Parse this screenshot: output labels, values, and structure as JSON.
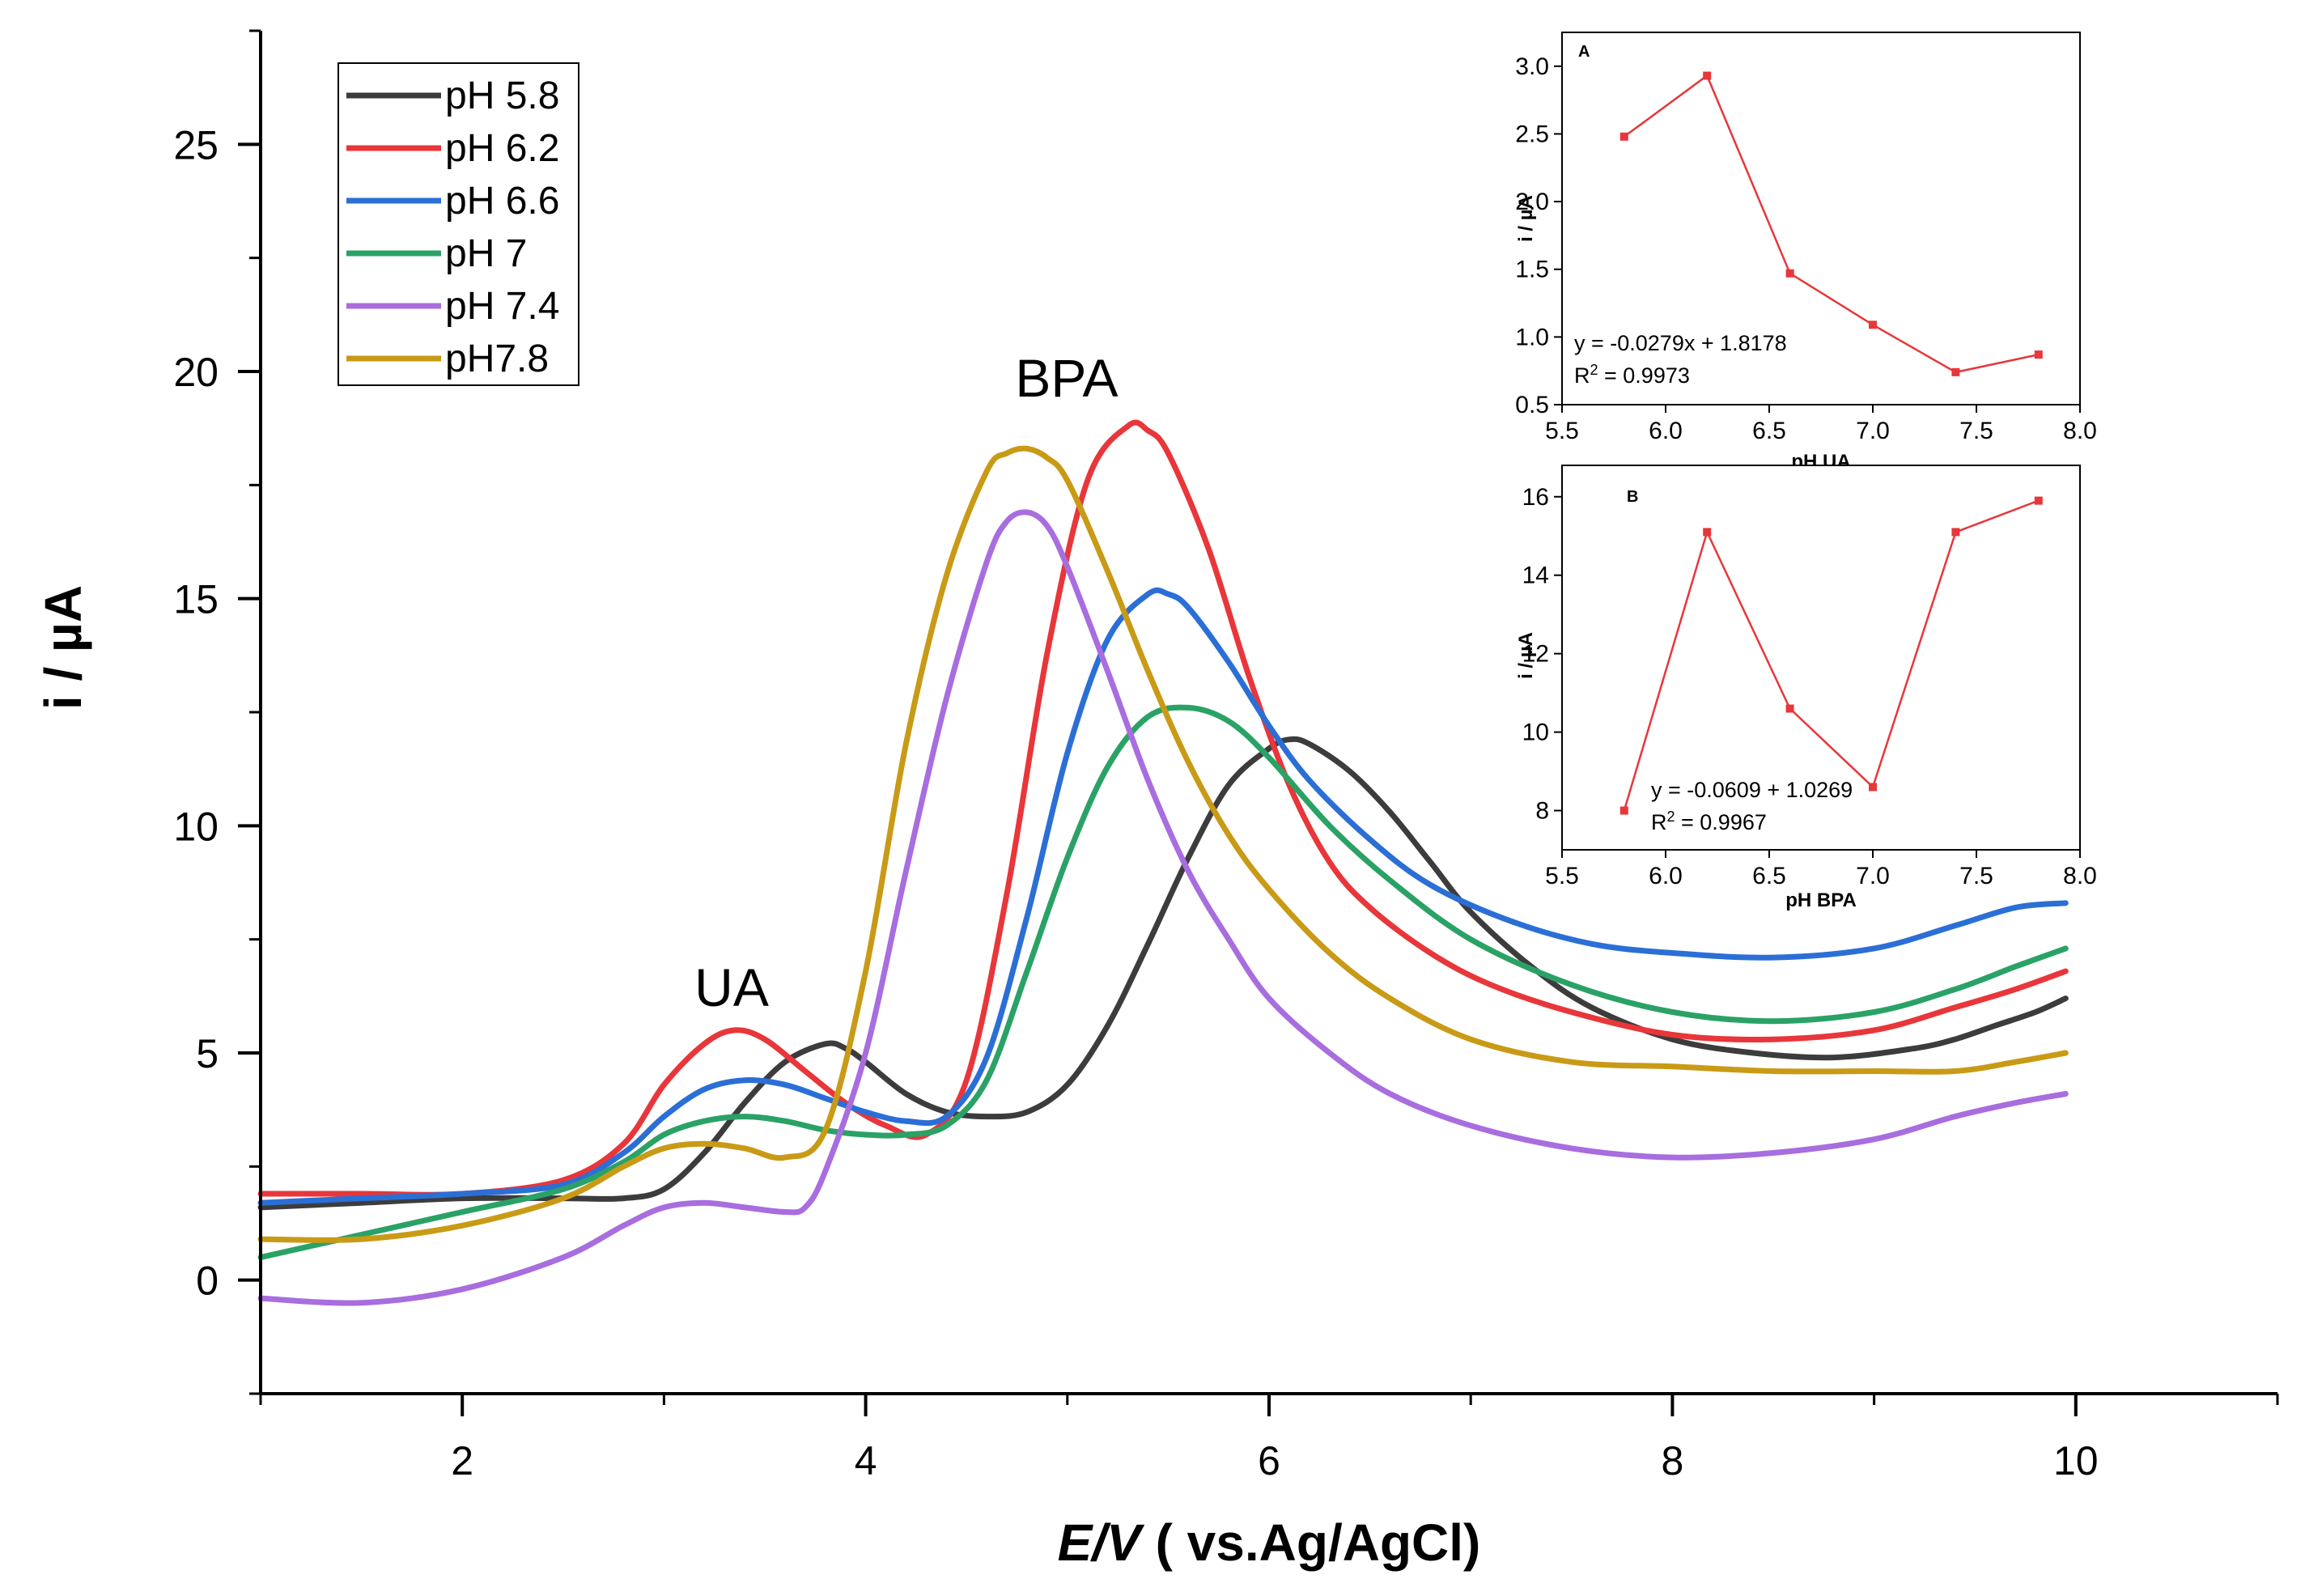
{
  "chart_data": [
    {
      "type": "line",
      "xlabel_italic": "E/V",
      "xlabel_rest": " ( vs.Ag/AgCl)",
      "ylabel": "i / µA",
      "xlim": [
        1,
        11
      ],
      "ylim": [
        -2.5,
        27.5
      ],
      "xticks": [
        2,
        4,
        6,
        8,
        10
      ],
      "yticks": [
        0,
        5,
        10,
        15,
        20,
        25
      ],
      "grid": false,
      "legend_position": "top-left",
      "annotations": [
        {
          "text": "UA",
          "x": 3.4,
          "y": 6.4
        },
        {
          "text": "BPA",
          "x": 5.0,
          "y": 19.7
        }
      ],
      "series": [
        {
          "name": "pH 5.8",
          "color": "#3c3c3c",
          "x": [
            1.0,
            1.5,
            2.0,
            2.5,
            2.8,
            3.0,
            3.2,
            3.4,
            3.6,
            3.8,
            3.9,
            4.0,
            4.2,
            4.4,
            4.6,
            4.8,
            5.0,
            5.2,
            5.4,
            5.6,
            5.8,
            6.0,
            6.1,
            6.2,
            6.4,
            6.6,
            6.8,
            7.0,
            7.3,
            7.6,
            8.0,
            8.4,
            8.8,
            9.2,
            9.4,
            9.6,
            9.8,
            9.95
          ],
          "values": [
            1.6,
            1.7,
            1.8,
            1.8,
            1.8,
            2.0,
            2.8,
            3.9,
            4.8,
            5.2,
            5.1,
            4.8,
            4.1,
            3.7,
            3.6,
            3.7,
            4.3,
            5.6,
            7.4,
            9.3,
            10.9,
            11.7,
            11.9,
            11.8,
            11.2,
            10.3,
            9.2,
            8.1,
            6.9,
            6.0,
            5.3,
            5.0,
            4.9,
            5.1,
            5.3,
            5.6,
            5.9,
            6.2
          ]
        },
        {
          "name": "pH 6.2",
          "color": "#e8363a",
          "x": [
            1.0,
            1.5,
            2.0,
            2.5,
            2.8,
            3.0,
            3.2,
            3.35,
            3.5,
            3.7,
            3.9,
            4.1,
            4.3,
            4.5,
            4.7,
            4.9,
            5.1,
            5.3,
            5.4,
            5.5,
            5.7,
            5.9,
            6.1,
            6.3,
            6.5,
            6.8,
            7.1,
            7.5,
            8.0,
            8.5,
            9.0,
            9.4,
            9.7,
            9.95
          ],
          "values": [
            1.9,
            1.9,
            1.9,
            2.2,
            3.0,
            4.3,
            5.2,
            5.5,
            5.3,
            4.6,
            3.9,
            3.4,
            3.2,
            4.4,
            8.5,
            13.8,
            17.6,
            18.8,
            18.7,
            18.2,
            16.1,
            13.3,
            10.9,
            9.2,
            8.2,
            7.2,
            6.5,
            5.9,
            5.4,
            5.3,
            5.5,
            6.0,
            6.4,
            6.8
          ]
        },
        {
          "name": "pH 6.6",
          "color": "#2b6fd6",
          "x": [
            1.0,
            1.5,
            2.0,
            2.5,
            2.8,
            3.0,
            3.2,
            3.4,
            3.6,
            3.8,
            4.0,
            4.2,
            4.4,
            4.6,
            4.8,
            5.0,
            5.2,
            5.4,
            5.5,
            5.6,
            5.8,
            6.0,
            6.2,
            6.5,
            6.8,
            7.2,
            7.6,
            8.0,
            8.5,
            9.0,
            9.4,
            9.7,
            9.95
          ],
          "values": [
            1.7,
            1.8,
            1.9,
            2.1,
            2.8,
            3.6,
            4.2,
            4.4,
            4.3,
            4.0,
            3.7,
            3.5,
            3.6,
            4.9,
            8.0,
            11.6,
            14.1,
            15.1,
            15.1,
            14.8,
            13.6,
            12.2,
            11.0,
            9.7,
            8.7,
            7.9,
            7.4,
            7.2,
            7.1,
            7.3,
            7.8,
            8.2,
            8.3
          ]
        },
        {
          "name": "pH 7",
          "color": "#2aa266",
          "x": [
            1.0,
            1.5,
            2.0,
            2.5,
            2.8,
            3.0,
            3.2,
            3.4,
            3.6,
            3.8,
            4.0,
            4.2,
            4.4,
            4.6,
            4.8,
            5.0,
            5.2,
            5.4,
            5.6,
            5.8,
            6.0,
            6.3,
            6.6,
            7.0,
            7.5,
            8.0,
            8.5,
            9.0,
            9.4,
            9.7,
            9.95
          ],
          "values": [
            0.5,
            1.0,
            1.5,
            2.0,
            2.6,
            3.2,
            3.5,
            3.6,
            3.5,
            3.3,
            3.2,
            3.2,
            3.4,
            4.4,
            6.8,
            9.3,
            11.3,
            12.4,
            12.6,
            12.3,
            11.5,
            10.0,
            8.8,
            7.5,
            6.5,
            5.9,
            5.7,
            5.9,
            6.4,
            6.9,
            7.3
          ]
        },
        {
          "name": "pH 7.4",
          "color": "#a86ddf",
          "x": [
            1.0,
            1.5,
            2.0,
            2.5,
            2.8,
            3.0,
            3.2,
            3.4,
            3.6,
            3.7,
            3.8,
            4.0,
            4.2,
            4.4,
            4.6,
            4.7,
            4.8,
            4.9,
            5.0,
            5.2,
            5.4,
            5.6,
            5.8,
            6.0,
            6.3,
            6.6,
            7.0,
            7.5,
            8.0,
            8.5,
            9.0,
            9.4,
            9.7,
            9.95
          ],
          "values": [
            -0.4,
            -0.5,
            -0.2,
            0.5,
            1.2,
            1.6,
            1.7,
            1.6,
            1.5,
            1.6,
            2.4,
            5.0,
            9.0,
            12.8,
            15.8,
            16.7,
            16.9,
            16.6,
            15.7,
            13.4,
            11.0,
            9.0,
            7.5,
            6.2,
            5.0,
            4.1,
            3.4,
            2.9,
            2.7,
            2.8,
            3.1,
            3.6,
            3.9,
            4.1
          ]
        },
        {
          "name": "pH7.8",
          "color": "#c99a16",
          "x": [
            1.0,
            1.5,
            2.0,
            2.5,
            2.8,
            3.0,
            3.2,
            3.4,
            3.6,
            3.8,
            4.0,
            4.2,
            4.4,
            4.6,
            4.7,
            4.8,
            4.9,
            5.0,
            5.2,
            5.4,
            5.6,
            5.8,
            6.0,
            6.3,
            6.6,
            7.0,
            7.5,
            8.0,
            8.5,
            9.0,
            9.4,
            9.7,
            9.95
          ],
          "values": [
            0.9,
            0.9,
            1.2,
            1.8,
            2.5,
            2.9,
            3.0,
            2.9,
            2.7,
            3.3,
            6.8,
            11.8,
            15.5,
            17.8,
            18.2,
            18.3,
            18.1,
            17.6,
            15.6,
            13.4,
            11.4,
            9.8,
            8.6,
            7.2,
            6.2,
            5.3,
            4.8,
            4.7,
            4.6,
            4.6,
            4.6,
            4.8,
            5.0
          ]
        }
      ]
    },
    {
      "type": "line",
      "title": "A",
      "xlabel": "pH UA",
      "ylabel": "i / µA",
      "xlim": [
        5.5,
        8.0
      ],
      "ylim": [
        0.5,
        3.25
      ],
      "xticks": [
        "5.5",
        "6.0",
        "6.5",
        "7.0",
        "7.5",
        "8.0"
      ],
      "yticks": [
        "0.5",
        "1.0",
        "1.5",
        "2.0",
        "2.5",
        "3.0"
      ],
      "x": [
        5.8,
        6.2,
        6.6,
        7.0,
        7.4,
        7.8
      ],
      "values": [
        2.48,
        2.93,
        1.47,
        1.09,
        0.74,
        0.87
      ],
      "color": "#e8363a",
      "equation": "y = -0.0279x + 1.8178",
      "r2_label": "R",
      "r2_sup": "2",
      "r2_value": " = 0.9973"
    },
    {
      "type": "line",
      "title": "B",
      "xlabel": "pH BPA",
      "ylabel": "i / µA",
      "xlim": [
        5.5,
        8.0
      ],
      "ylim": [
        7,
        16.8
      ],
      "xticks": [
        "5.5",
        "6.0",
        "6.5",
        "7.0",
        "7.5",
        "8.0"
      ],
      "yticks": [
        "8",
        "10",
        "12",
        "14",
        "16"
      ],
      "x": [
        5.8,
        6.2,
        6.6,
        7.0,
        7.4,
        7.8
      ],
      "values": [
        8.0,
        15.1,
        10.6,
        8.6,
        15.1,
        15.9
      ],
      "color": "#e8363a",
      "equation": "y = -0.0609 + 1.0269",
      "r2_label": "R",
      "r2_sup": "2",
      "r2_value": " = 0.9967"
    }
  ]
}
